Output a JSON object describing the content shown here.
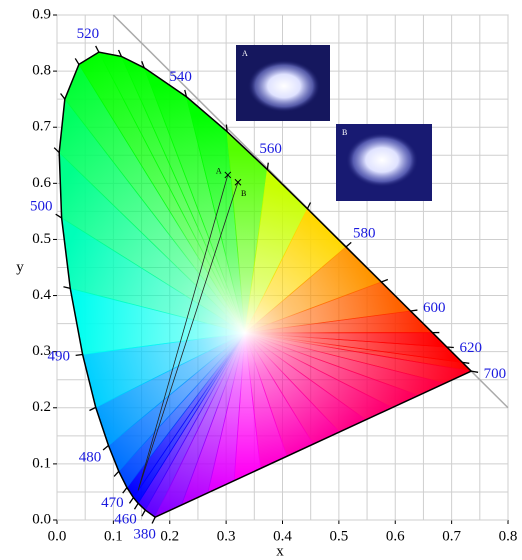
{
  "chart_data": {
    "type": "chromaticity",
    "x_label": "x",
    "y_label": "y",
    "xlim": [
      0,
      0.8
    ],
    "ylim": [
      0,
      0.9
    ],
    "xticks": [
      {
        "value": 0,
        "label": "0.0"
      },
      0.1,
      0.2,
      0.3,
      0.4,
      0.5,
      0.6,
      0.7,
      0.8
    ],
    "yticks": [
      {
        "value": 0,
        "label": "0.0"
      },
      0.1,
      0.2,
      0.3,
      0.4,
      0.5,
      0.6,
      0.7,
      0.8,
      0.9
    ],
    "x_minor_grid": [
      0.05,
      0.15,
      0.25,
      0.35,
      0.45,
      0.55,
      0.65,
      0.75
    ],
    "y_minor_grid": [
      0.05,
      0.15,
      0.25,
      0.35,
      0.45,
      0.55,
      0.65,
      0.75,
      0.85
    ],
    "grid": true,
    "spectral_locus": {
      "labels": [
        380,
        null,
        460,
        null,
        470,
        null,
        480,
        null,
        490,
        null,
        500,
        null,
        null,
        null,
        520,
        null,
        null,
        540,
        null,
        560,
        null,
        580,
        null,
        600,
        null,
        620,
        null,
        700
      ],
      "x": [
        0.1741,
        0.1566,
        0.144,
        0.1355,
        0.1241,
        0.1096,
        0.0913,
        0.0687,
        0.0454,
        0.0235,
        0.0082,
        0.0039,
        0.0139,
        0.0389,
        0.0743,
        0.1142,
        0.1547,
        0.2296,
        0.3016,
        0.3731,
        0.4441,
        0.5125,
        0.5752,
        0.627,
        0.6658,
        0.6915,
        0.719,
        0.7347
      ],
      "y": [
        0.005,
        0.0177,
        0.0297,
        0.0399,
        0.0578,
        0.0868,
        0.1327,
        0.2007,
        0.295,
        0.4127,
        0.5384,
        0.6548,
        0.7502,
        0.812,
        0.8338,
        0.8262,
        0.8059,
        0.7543,
        0.6923,
        0.6245,
        0.5547,
        0.4866,
        0.4242,
        0.3725,
        0.334,
        0.3083,
        0.2809,
        0.2653
      ]
    },
    "diagonal": {
      "x": [
        0.1,
        0.8
      ],
      "y": [
        0.9,
        0.2
      ]
    },
    "origin_point": {
      "x": 0.144,
      "y": 0.053
    },
    "points": [
      {
        "label": "A",
        "x": 0.303,
        "y": 0.615
      },
      {
        "label": "B",
        "x": 0.321,
        "y": 0.602
      }
    ],
    "insets": [
      {
        "label": "A"
      },
      {
        "label": "B"
      }
    ]
  }
}
